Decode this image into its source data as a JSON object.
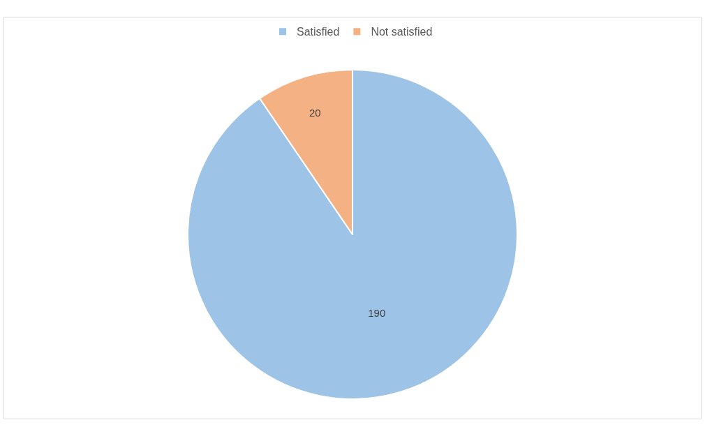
{
  "chart_data": {
    "type": "pie",
    "categories": [
      "Satisfied",
      "Not satisfied"
    ],
    "values": [
      190,
      20
    ],
    "colors": [
      "#9dc3e6",
      "#f4b183"
    ],
    "data_labels": true,
    "legend": "top"
  }
}
